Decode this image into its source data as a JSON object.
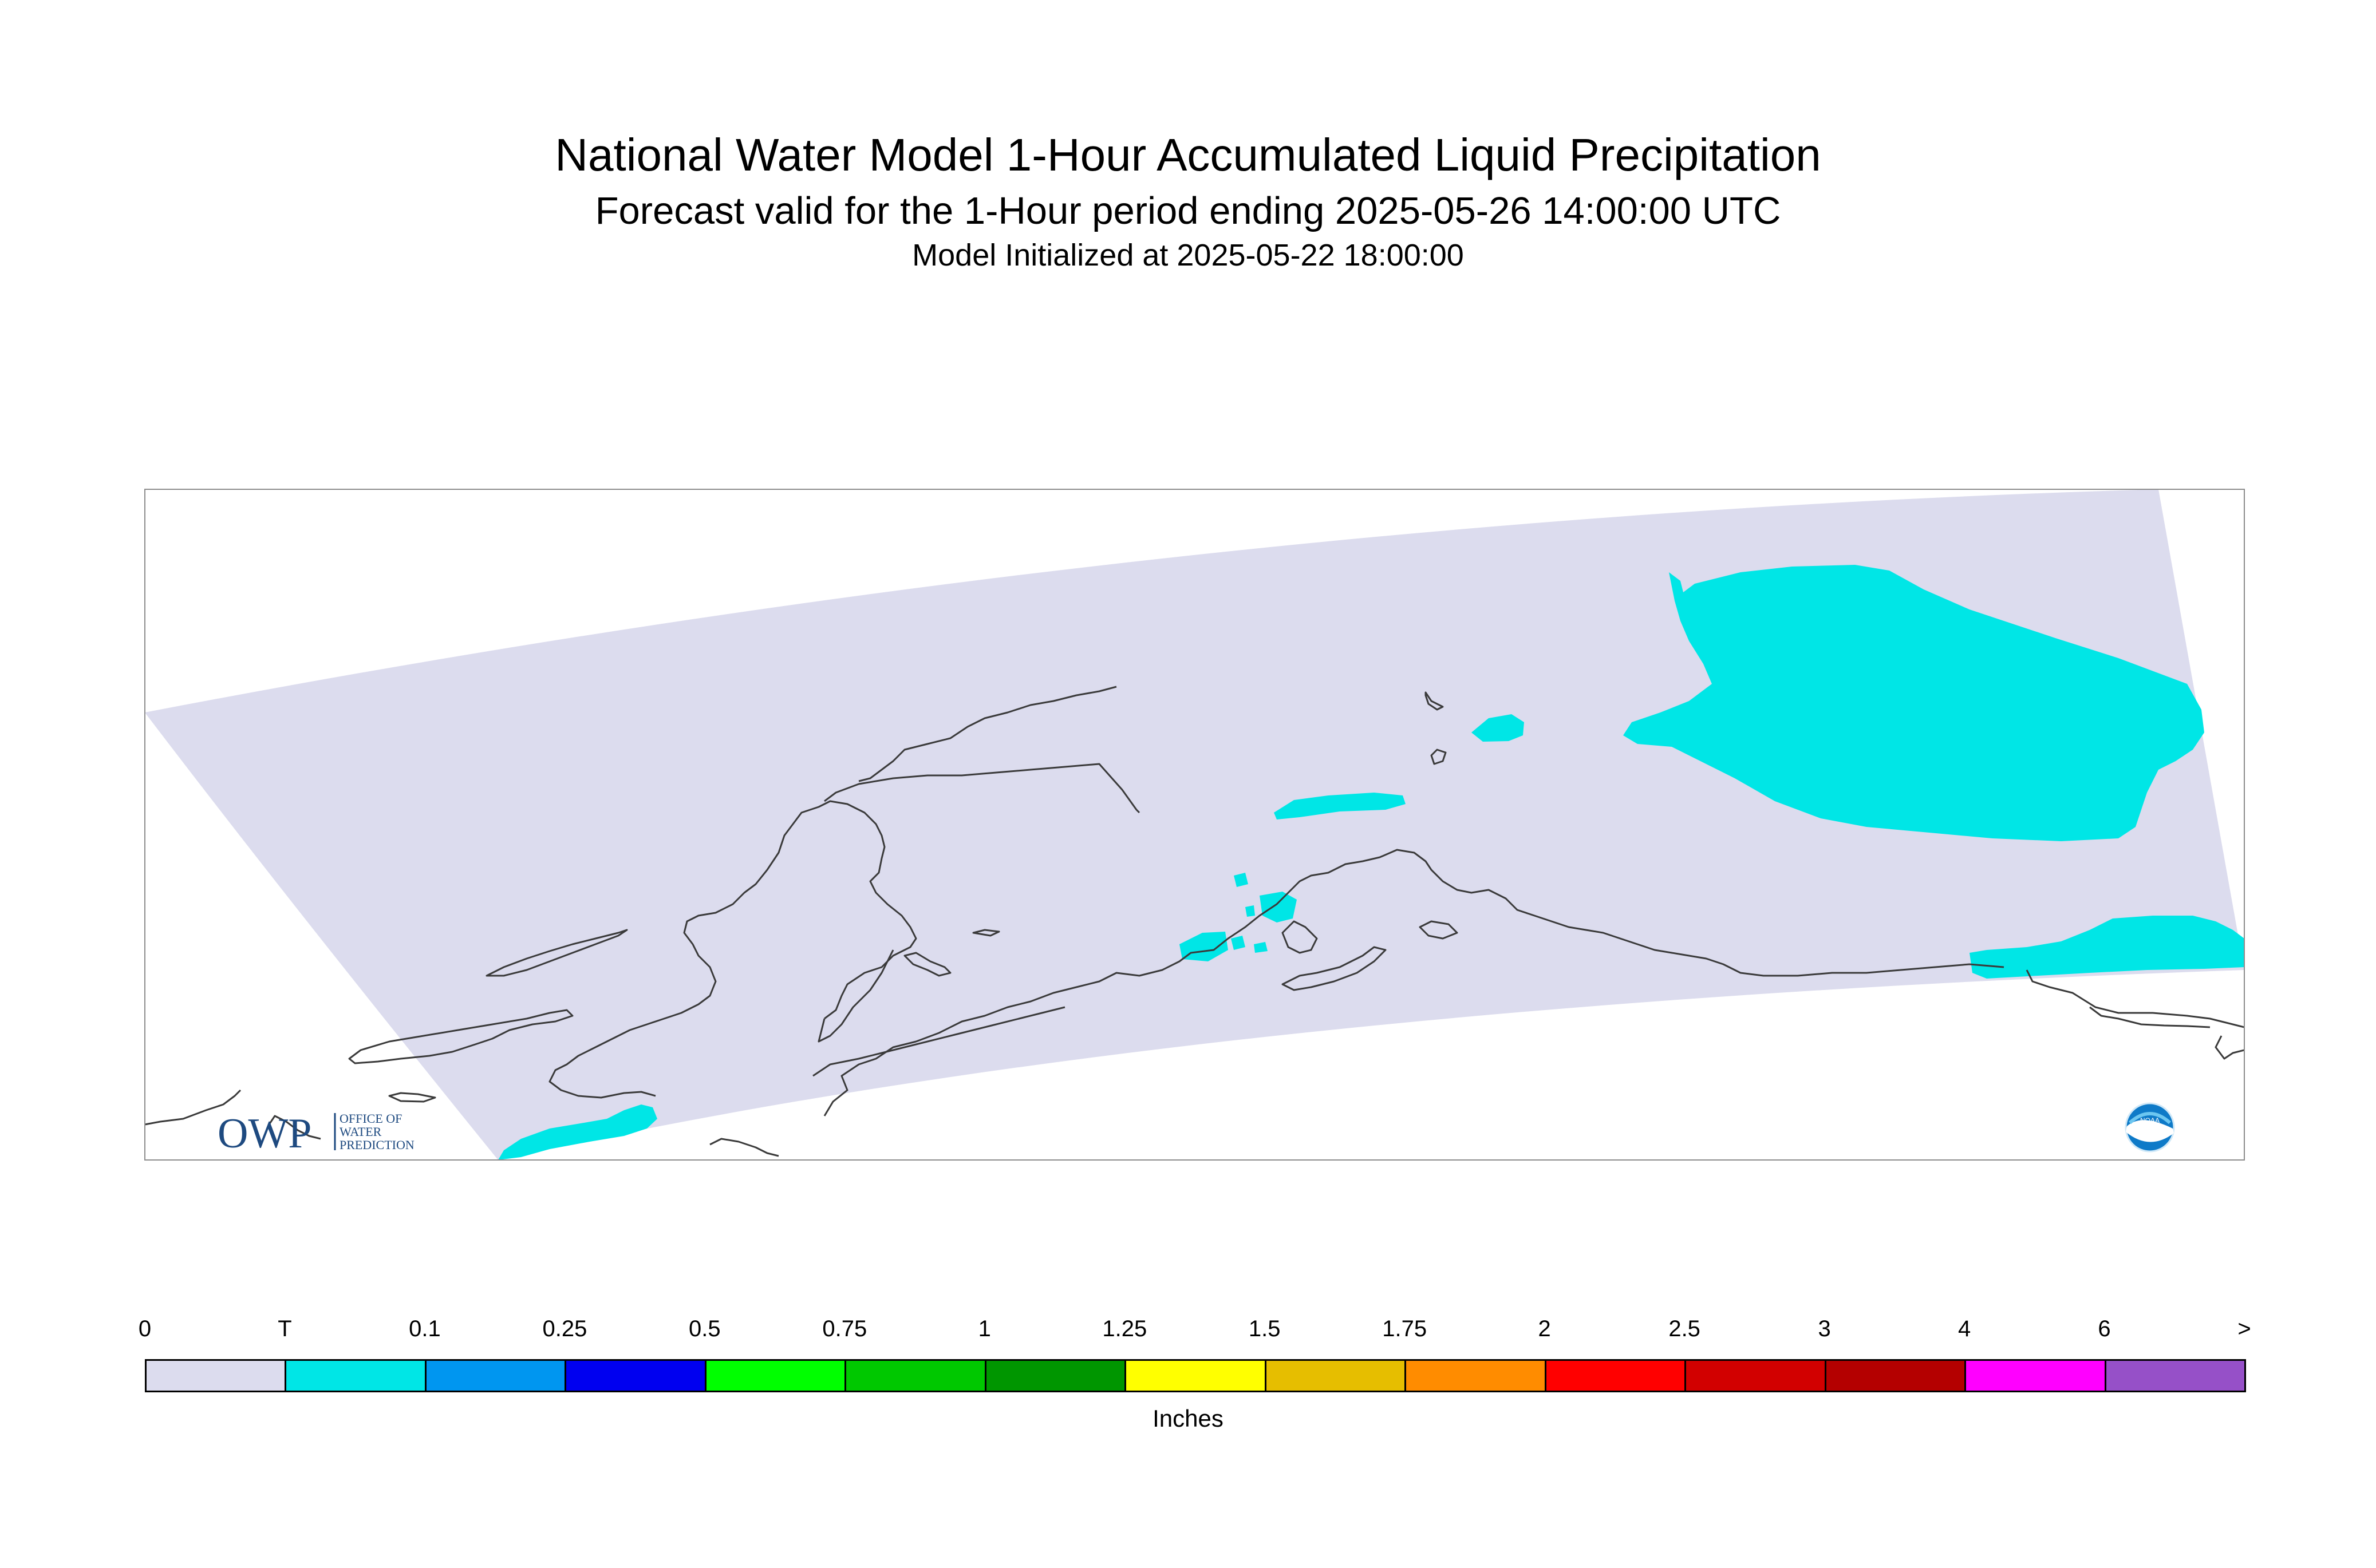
{
  "title": "National Water Model 1-Hour Accumulated Liquid Precipitation",
  "subtitle": "Forecast valid for the 1-Hour period ending 2025-05-26 14:00:00 UTC",
  "init": "Model Initialized at 2025-05-22 18:00:00",
  "legend": {
    "units": "Inches",
    "ticks": [
      "0",
      "T",
      "0.1",
      "0.25",
      "0.5",
      "0.75",
      "1",
      "1.25",
      "1.5",
      "1.75",
      "2",
      "2.5",
      "3",
      "4",
      "6",
      ">"
    ],
    "colors": [
      "#dcdcee",
      "#00e6e6",
      "#0096f0",
      "#0000f0",
      "#00ff00",
      "#00c800",
      "#009600",
      "#ffff00",
      "#e6be00",
      "#ff8c00",
      "#ff0000",
      "#d20000",
      "#b40000",
      "#ff00ff",
      "#9650c8"
    ]
  },
  "colors": {
    "domain": "#dcdcee",
    "trace": "#00e6e6",
    "coastline": "#3a3a3a",
    "frame": "#8c8c8c",
    "owp_blue": "#1e4a80"
  },
  "logos": {
    "owp": {
      "mark": "OWP",
      "line1": "OFFICE OF",
      "line2": "WATER",
      "line3": "PREDICTION"
    },
    "noaa": {
      "mark": "NOAA"
    }
  }
}
